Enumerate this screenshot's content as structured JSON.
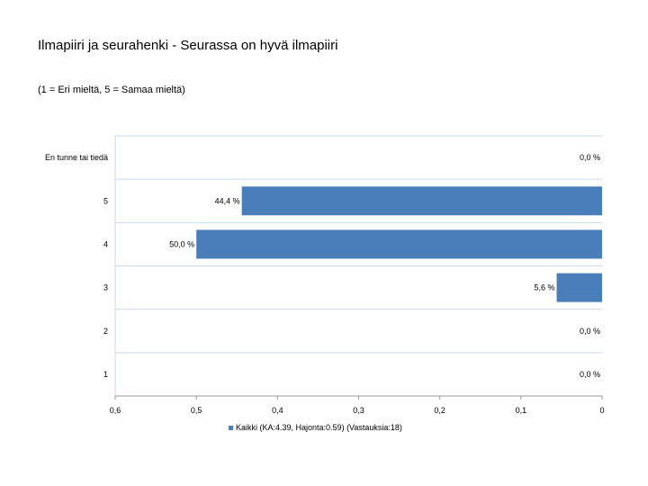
{
  "chart_data": {
    "type": "bar",
    "orientation": "horizontal",
    "title": "Ilmapiiri ja seurahenki - Seurassa on hyvä ilmapiiri",
    "subtitle": "(1 = Eri mieltä, 5 = Samaa mieltä)",
    "categories": [
      "En tunne tai tiedä",
      "5",
      "4",
      "3",
      "2",
      "1"
    ],
    "series": [
      {
        "name": "Kaikki (KA:4.39, Hajonta:0.59) (Vastauksia:18)",
        "values": [
          0.0,
          0.444,
          0.5,
          0.056,
          0.0,
          0.0
        ],
        "labels": [
          "0,0 %",
          "44,4 %",
          "50,0 %",
          "5,6 %",
          "0,0 %",
          "0,0 %"
        ],
        "color": "#4a7ebb"
      }
    ],
    "xlim": [
      0.6,
      0
    ],
    "x_reversed": true,
    "x_ticks": [
      0.6,
      0.5,
      0.4,
      0.3,
      0.2,
      0.1,
      0
    ],
    "x_tick_labels": [
      "0,6",
      "0,5",
      "0,4",
      "0,3",
      "0,2",
      "0,1",
      "0"
    ],
    "grid": true,
    "legend_position": "bottom"
  },
  "colors": {
    "bar": "#4a7ebb",
    "grid": "#c9d9e8",
    "axis": "#999999"
  }
}
